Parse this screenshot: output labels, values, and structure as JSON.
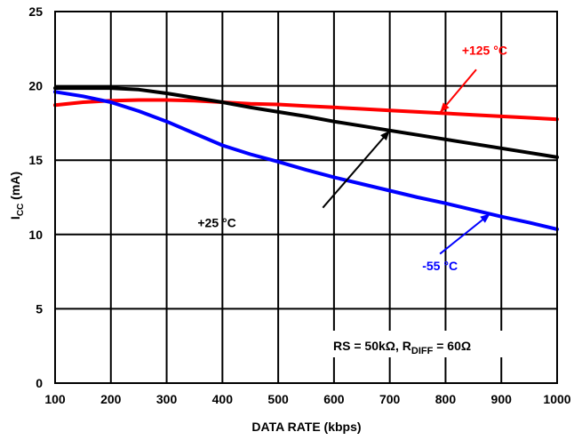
{
  "chart_data": {
    "type": "line",
    "title": "",
    "xlabel": "DATA RATE (kbps)",
    "ylabel_main": "I",
    "ylabel_sub": "CC",
    "ylabel_unit": " (mA)",
    "xlim": [
      100,
      1000
    ],
    "ylim": [
      0,
      25
    ],
    "xticks": [
      100,
      200,
      300,
      400,
      500,
      600,
      700,
      800,
      900,
      1000
    ],
    "yticks": [
      0,
      5,
      10,
      15,
      20,
      25
    ],
    "grid": true,
    "series": [
      {
        "name": "+125 °C",
        "color": "#ff0000",
        "x": [
          100,
          150,
          200,
          250,
          300,
          350,
          400,
          450,
          500,
          550,
          600,
          650,
          700,
          750,
          800,
          850,
          900,
          950,
          1000
        ],
        "y": [
          18.7,
          18.9,
          19.0,
          19.05,
          19.05,
          19.0,
          18.9,
          18.8,
          18.75,
          18.65,
          18.55,
          18.45,
          18.35,
          18.25,
          18.15,
          18.05,
          17.95,
          17.85,
          17.75
        ]
      },
      {
        "name": "+25 °C",
        "color": "#000000",
        "x": [
          100,
          150,
          200,
          250,
          300,
          350,
          400,
          450,
          500,
          550,
          600,
          650,
          700,
          750,
          800,
          850,
          900,
          950,
          1000
        ],
        "y": [
          19.85,
          19.85,
          19.85,
          19.75,
          19.5,
          19.2,
          18.9,
          18.55,
          18.25,
          17.95,
          17.6,
          17.3,
          17.0,
          16.7,
          16.4,
          16.1,
          15.8,
          15.5,
          15.2
        ]
      },
      {
        "name": "-55 °C",
        "color": "#0000ff",
        "x": [
          100,
          150,
          200,
          250,
          300,
          350,
          400,
          450,
          500,
          550,
          600,
          650,
          700,
          750,
          800,
          850,
          900,
          950,
          1000
        ],
        "y": [
          19.6,
          19.3,
          18.9,
          18.3,
          17.6,
          16.8,
          16.0,
          15.4,
          14.9,
          14.35,
          13.85,
          13.4,
          12.95,
          12.5,
          12.1,
          11.65,
          11.2,
          10.8,
          10.35
        ]
      }
    ],
    "annotations": [
      {
        "label": "+125 °C",
        "color": "#ff0000",
        "text_x": 870,
        "text_y": 22.1,
        "arrow_from": [
          855,
          21.1
        ],
        "arrow_to": [
          790,
          18.2
        ]
      },
      {
        "label": "+25 °C",
        "color": "#000000",
        "text_x": 390,
        "text_y": 10.5,
        "arrow_from": [
          580,
          11.8
        ],
        "arrow_to": [
          700,
          17.0
        ]
      },
      {
        "label": "-55 °C",
        "color": "#0000ff",
        "text_x": 790,
        "text_y": 7.6,
        "arrow_from": [
          790,
          8.7
        ],
        "arrow_to": [
          880,
          11.4
        ]
      }
    ],
    "note": {
      "pre": "RS = 50kΩ, R",
      "sub": "DIFF",
      "post": " = 60Ω"
    }
  }
}
